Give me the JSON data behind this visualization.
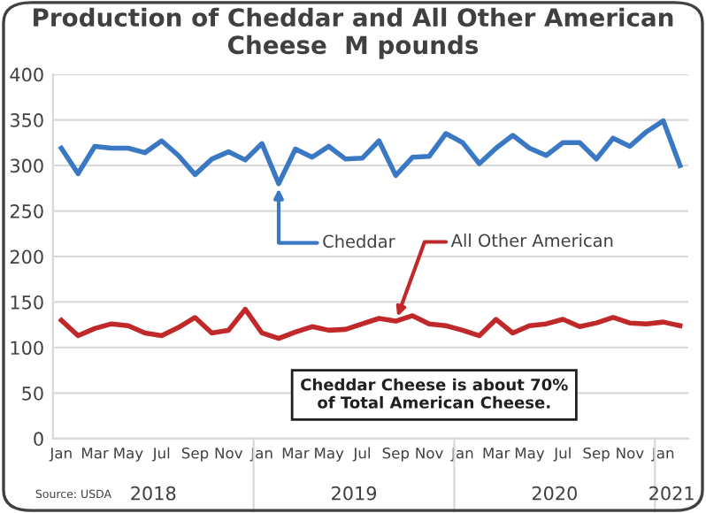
{
  "chart_data": {
    "type": "line",
    "title": "Production of Cheddar and All Other American Cheese  M pounds",
    "categories": [
      "Jan",
      null,
      "Mar",
      null,
      "May",
      null,
      "Jul",
      null,
      "Sep",
      null,
      "Nov",
      null,
      "Jan",
      null,
      "Mar",
      null,
      "May",
      null,
      "Jul",
      null,
      "Sep",
      null,
      "Nov",
      null,
      "Jan",
      null,
      "Mar",
      null,
      "May",
      null,
      "Jul",
      null,
      "Sep",
      null,
      "Nov",
      null,
      "Jan",
      null
    ],
    "series": [
      {
        "name": "Cheddar",
        "color": "#3a78c3",
        "values": [
          319,
          291,
          321,
          319,
          319,
          314,
          327,
          311,
          290,
          307,
          315,
          306,
          324,
          280,
          318,
          309,
          321,
          307,
          308,
          327,
          289,
          309,
          310,
          335,
          325,
          302,
          319,
          333,
          319,
          311,
          325,
          325,
          307,
          330,
          321,
          337,
          349,
          300
        ]
      },
      {
        "name": "All Other American",
        "color": "#c0282a",
        "values": [
          130,
          113,
          121,
          126,
          124,
          116,
          113,
          122,
          133,
          116,
          119,
          142,
          116,
          110,
          117,
          123,
          119,
          120,
          126,
          132,
          129,
          135,
          126,
          124,
          119,
          113,
          131,
          116,
          124,
          126,
          131,
          123,
          127,
          133,
          127,
          126,
          128,
          124
        ]
      }
    ],
    "ylim": [
      0,
      400
    ],
    "yticks": [
      0,
      50,
      100,
      150,
      200,
      250,
      300,
      350,
      400
    ],
    "grid": "y",
    "legend": false,
    "marker": "none",
    "line_style": "solid",
    "annotations": [
      "2018",
      "2019",
      "2020",
      "2021",
      "Cheddar Cheese is about 70%\nof Total American Cheese.",
      "Source: USDA"
    ]
  }
}
